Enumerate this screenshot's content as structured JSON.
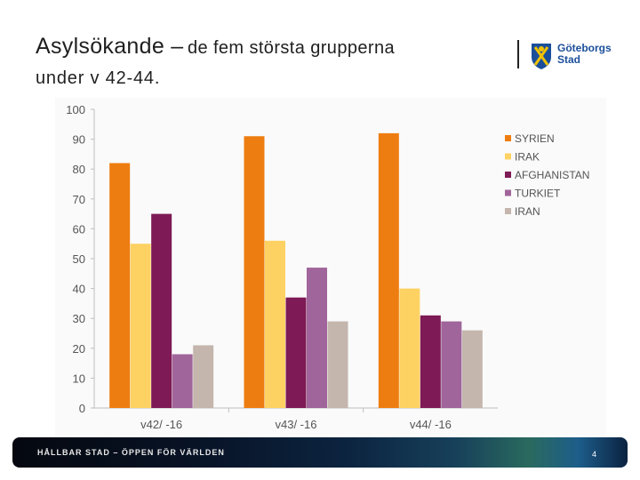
{
  "title": {
    "part1": "Asylsökande –",
    "part2": "de fem största grupperna",
    "part3": "under v 42-44."
  },
  "logo": {
    "line1": "Göteborgs",
    "line2": "Stad"
  },
  "footer": {
    "text": "HÅLLBAR STAD – ÖPPEN FÖR VÄRLDEN",
    "page_number": "4"
  },
  "colors": {
    "SYRIEN": "#ee7d11",
    "IRAK": "#fdd262",
    "AFGHANISTAN": "#7e1a55",
    "TURKIET": "#a0659a",
    "IRAN": "#c4b6ad"
  },
  "chart_data": {
    "type": "bar",
    "categories": [
      "v42/ -16",
      "v43/ -16",
      "v44/ -16"
    ],
    "series": [
      {
        "name": "SYRIEN",
        "values": [
          82,
          91,
          92
        ]
      },
      {
        "name": "IRAK",
        "values": [
          55,
          56,
          40
        ]
      },
      {
        "name": "AFGHANISTAN",
        "values": [
          65,
          37,
          31
        ]
      },
      {
        "name": "TURKIET",
        "values": [
          18,
          47,
          29
        ]
      },
      {
        "name": "IRAN",
        "values": [
          21,
          29,
          26
        ]
      }
    ],
    "yticks": [
      "0",
      "10",
      "20",
      "30",
      "40",
      "50",
      "60",
      "70",
      "80",
      "90",
      "100"
    ],
    "ylim": [
      0,
      100
    ],
    "legend_position": "right",
    "grid": false
  }
}
